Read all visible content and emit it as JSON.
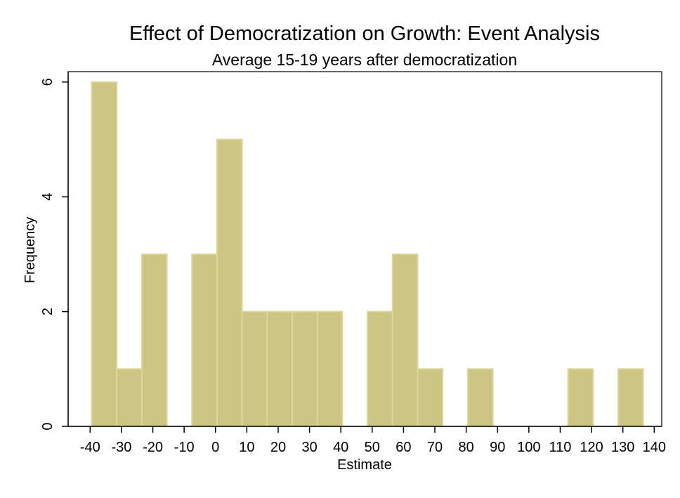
{
  "chart_data": {
    "type": "bar",
    "title": "Effect of Democratization on Growth: Event Analysis",
    "subtitle": "Average 15-19 years after democratization",
    "xlabel": "Estimate",
    "ylabel": "Frequency",
    "xlim": [
      -40,
      140
    ],
    "ylim": [
      0,
      6
    ],
    "x_ticks": [
      -40,
      -30,
      -20,
      -10,
      0,
      10,
      20,
      30,
      40,
      50,
      60,
      70,
      80,
      90,
      100,
      110,
      120,
      130,
      140
    ],
    "x_tick_labels": [
      "-40",
      "-30",
      "-20",
      "-10",
      "0",
      "10",
      "20",
      "30",
      "40",
      "50",
      "60",
      "70",
      "80",
      "90",
      "100",
      "110",
      "120",
      "130",
      "140"
    ],
    "y_ticks": [
      0,
      2,
      4,
      6
    ],
    "y_tick_labels": [
      "0",
      "2",
      "4",
      "6"
    ],
    "bin_width": 8,
    "bins": [
      {
        "start": -39.5,
        "end": -31.5,
        "value": 6
      },
      {
        "start": -31.5,
        "end": -23.5,
        "value": 1
      },
      {
        "start": -23.5,
        "end": -15.5,
        "value": 3
      },
      {
        "start": -7.5,
        "end": 0.5,
        "value": 3
      },
      {
        "start": 0.5,
        "end": 8.5,
        "value": 5
      },
      {
        "start": 8.5,
        "end": 16.5,
        "value": 2
      },
      {
        "start": 16.5,
        "end": 24.5,
        "value": 2
      },
      {
        "start": 24.5,
        "end": 32.5,
        "value": 2
      },
      {
        "start": 32.5,
        "end": 40.5,
        "value": 2
      },
      {
        "start": 48.5,
        "end": 56.5,
        "value": 2
      },
      {
        "start": 56.5,
        "end": 64.5,
        "value": 3
      },
      {
        "start": 64.5,
        "end": 72.5,
        "value": 1
      },
      {
        "start": 80.5,
        "end": 88.5,
        "value": 1
      },
      {
        "start": 112.5,
        "end": 120.5,
        "value": 1
      },
      {
        "start": 128.5,
        "end": 136.5,
        "value": 1
      }
    ],
    "grid": false,
    "legend": "none",
    "bar_color": "#CCC584",
    "bar_edge_color": "#DCD79B"
  }
}
